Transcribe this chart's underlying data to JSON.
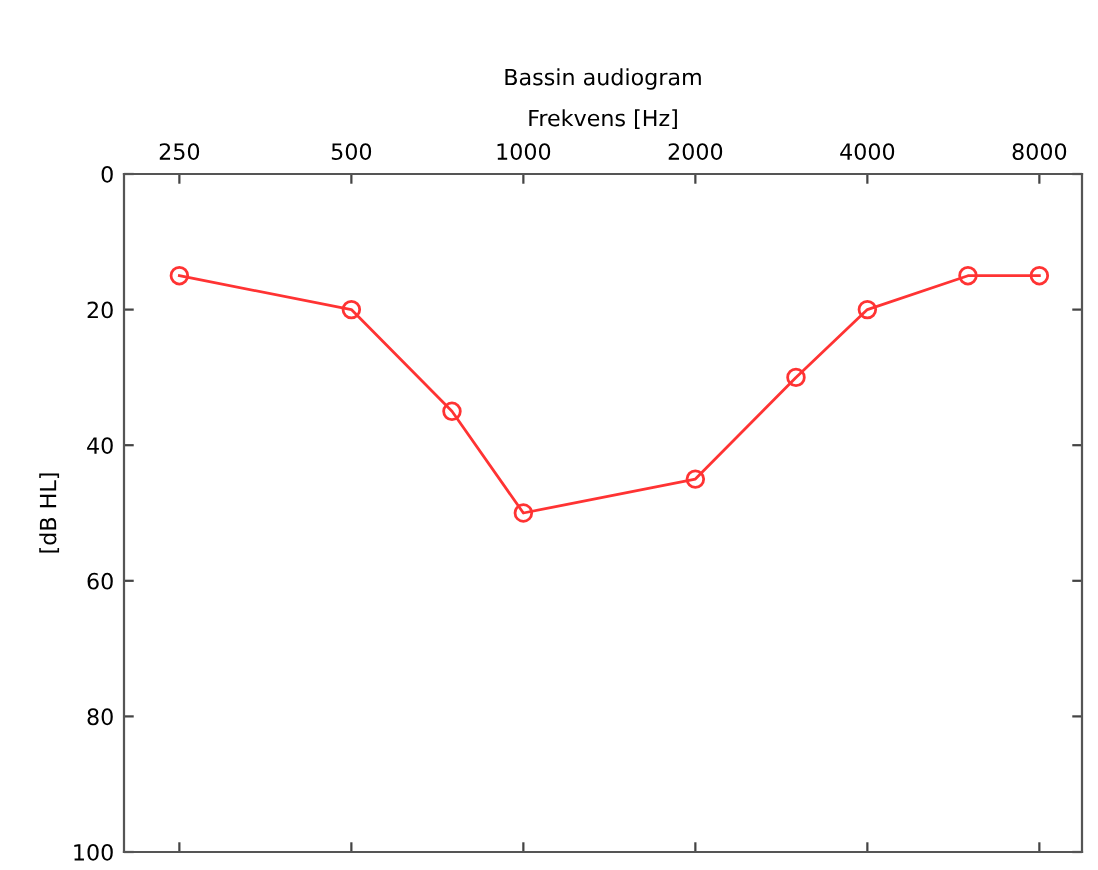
{
  "chart_data": {
    "type": "line",
    "title": "Bassin audiogram",
    "xlabel": "Frekvens [Hz]",
    "ylabel": "[dB HL]",
    "x": [
      250,
      500,
      750,
      1000,
      2000,
      3000,
      4000,
      6000,
      8000
    ],
    "series": [
      {
        "color": "#ff3333",
        "values": [
          15,
          20,
          35,
          50,
          45,
          30,
          20,
          15,
          15
        ]
      }
    ],
    "log": "x",
    "xlim": [
      200,
      9500
    ],
    "xticks": [
      250,
      500,
      1000,
      2000,
      4000,
      8000
    ],
    "ylim": [
      100,
      0
    ],
    "yticks": [
      0,
      20,
      40,
      60,
      80,
      100
    ],
    "marker": "circle",
    "line_style": "solid",
    "grid": false
  }
}
